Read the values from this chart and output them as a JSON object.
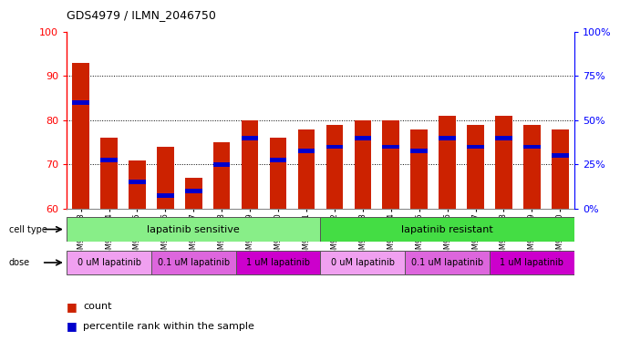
{
  "title": "GDS4979 / ILMN_2046750",
  "samples": [
    "GSM940873",
    "GSM940874",
    "GSM940875",
    "GSM940876",
    "GSM940877",
    "GSM940878",
    "GSM940879",
    "GSM940880",
    "GSM940881",
    "GSM940882",
    "GSM940883",
    "GSM940884",
    "GSM940885",
    "GSM940886",
    "GSM940887",
    "GSM940888",
    "GSM940889",
    "GSM940890"
  ],
  "red_values": [
    93,
    76,
    71,
    74,
    67,
    75,
    80,
    76,
    78,
    79,
    80,
    80,
    78,
    81,
    79,
    81,
    79,
    78
  ],
  "blue_values": [
    84,
    71,
    66,
    63,
    64,
    70,
    76,
    71,
    73,
    74,
    76,
    74,
    73,
    76,
    74,
    76,
    74,
    72
  ],
  "y_min": 60,
  "y_max": 100,
  "bar_color": "#cc2200",
  "blue_color": "#0000cc",
  "sensitive_color": "#88ee88",
  "resistant_color": "#44dd44",
  "dose_colors": [
    "#f0a0f0",
    "#dd66dd",
    "#cc00cc",
    "#f0a0f0",
    "#dd66dd",
    "#cc00cc"
  ],
  "dose_labels": [
    "0 uM lapatinib",
    "0.1 uM lapatinib",
    "1 uM lapatinib",
    "0 uM lapatinib",
    "0.1 uM lapatinib",
    "1 uM lapatinib"
  ],
  "legend_count": "count",
  "legend_pct": "percentile rank within the sample"
}
